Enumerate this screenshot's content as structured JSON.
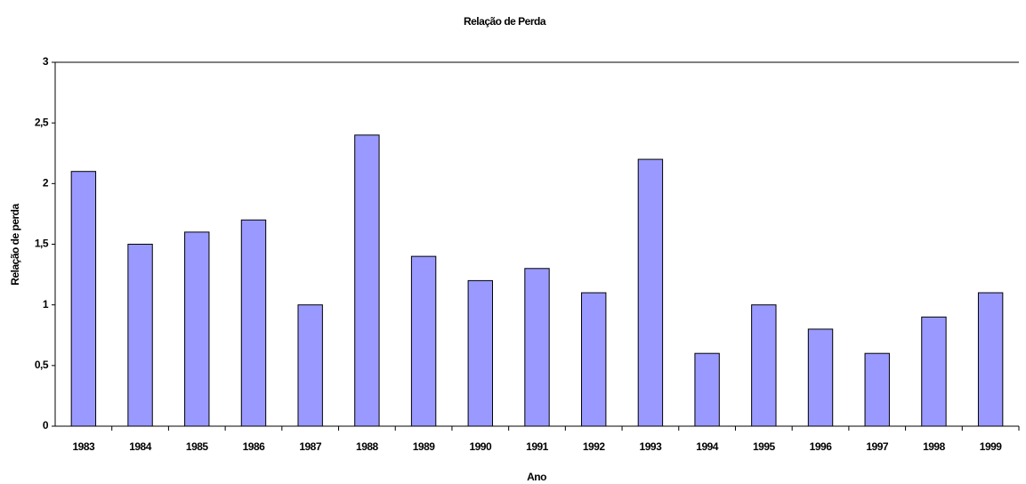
{
  "chart_data": {
    "type": "bar",
    "title": "Relação de Perda",
    "x_label": "Ano",
    "y_label": "Relação de perda",
    "categories": [
      "1983",
      "1984",
      "1985",
      "1986",
      "1987",
      "1988",
      "1989",
      "1990",
      "1991",
      "1992",
      "1993",
      "1994",
      "1995",
      "1996",
      "1997",
      "1998",
      "1999"
    ],
    "values": [
      2.1,
      1.5,
      1.6,
      1.7,
      1.0,
      2.4,
      1.4,
      1.2,
      1.3,
      1.1,
      2.2,
      0.6,
      1.0,
      0.8,
      0.6,
      0.9,
      1.1
    ],
    "color": "#9999ff",
    "ylim": [
      0,
      3
    ],
    "yticks": [
      0,
      {
        "value": 0.5,
        "label": "0,5"
      },
      1,
      {
        "value": 1.5,
        "label": "1,5"
      },
      2,
      {
        "value": 2.5,
        "label": "2,5"
      },
      3
    ],
    "grid": false
  }
}
